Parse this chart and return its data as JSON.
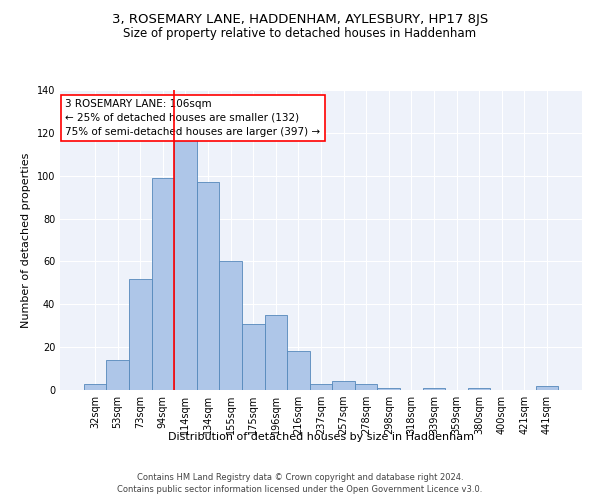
{
  "title": "3, ROSEMARY LANE, HADDENHAM, AYLESBURY, HP17 8JS",
  "subtitle": "Size of property relative to detached houses in Haddenham",
  "xlabel": "Distribution of detached houses by size in Haddenham",
  "ylabel": "Number of detached properties",
  "categories": [
    "32sqm",
    "53sqm",
    "73sqm",
    "94sqm",
    "114sqm",
    "134sqm",
    "155sqm",
    "175sqm",
    "196sqm",
    "216sqm",
    "237sqm",
    "257sqm",
    "278sqm",
    "298sqm",
    "318sqm",
    "339sqm",
    "359sqm",
    "380sqm",
    "400sqm",
    "421sqm",
    "441sqm"
  ],
  "values": [
    3,
    14,
    52,
    99,
    117,
    97,
    60,
    31,
    35,
    18,
    3,
    4,
    3,
    1,
    0,
    1,
    0,
    1,
    0,
    0,
    2
  ],
  "bar_color": "#aec6e8",
  "bar_edge_color": "#5588bb",
  "red_line_x": 3.5,
  "annotation_lines": [
    "3 ROSEMARY LANE: 106sqm",
    "← 25% of detached houses are smaller (132)",
    "75% of semi-detached houses are larger (397) →"
  ],
  "ylim": [
    0,
    140
  ],
  "yticks": [
    0,
    20,
    40,
    60,
    80,
    100,
    120,
    140
  ],
  "footnote1": "Contains HM Land Registry data © Crown copyright and database right 2024.",
  "footnote2": "Contains public sector information licensed under the Open Government Licence v3.0.",
  "background_color": "#eef2fa",
  "grid_color": "white",
  "title_fontsize": 9.5,
  "subtitle_fontsize": 8.5,
  "tick_fontsize": 7,
  "ylabel_fontsize": 8,
  "xlabel_fontsize": 8,
  "annotation_fontsize": 7.5,
  "footnote_fontsize": 6
}
